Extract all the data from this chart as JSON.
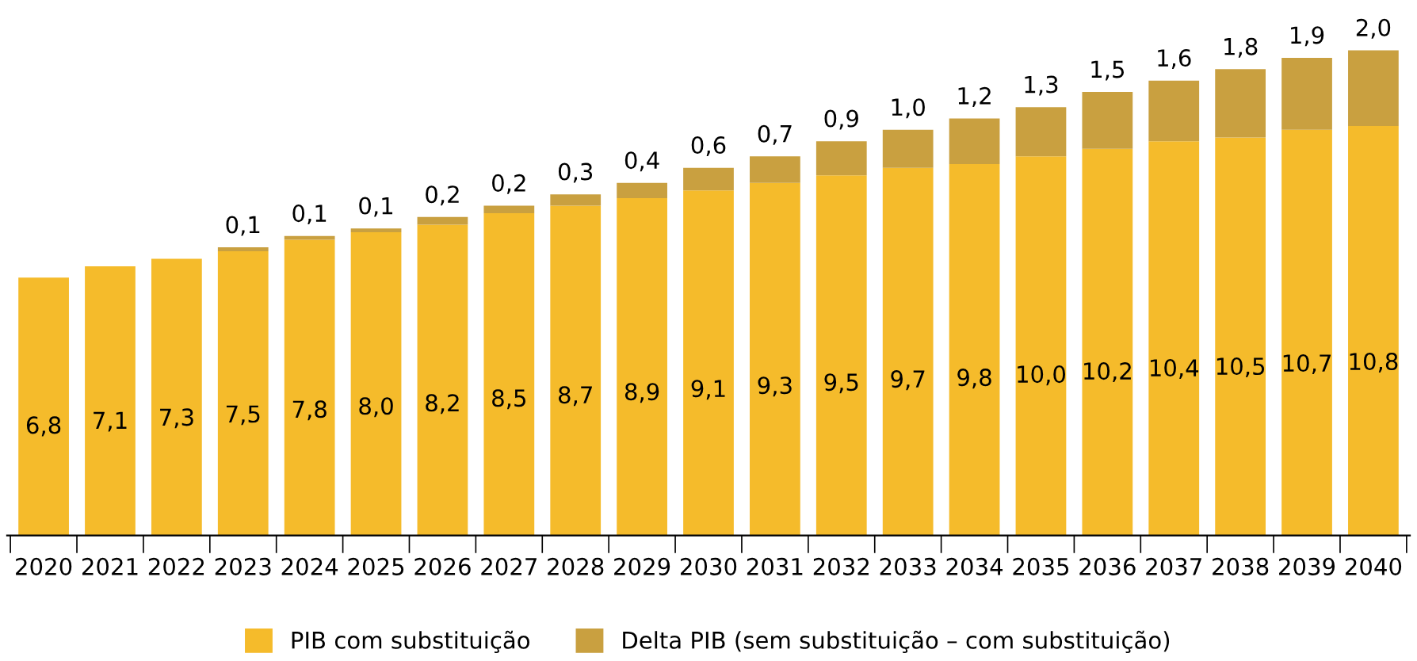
{
  "chart_data": {
    "type": "bar",
    "stacked": true,
    "legend": "bottom",
    "grid": false,
    "tick_labels": "x",
    "categories": [
      "2020",
      "2021",
      "2022",
      "2023",
      "2024",
      "2025",
      "2026",
      "2027",
      "2028",
      "2029",
      "2030",
      "2031",
      "2032",
      "2033",
      "2034",
      "2035",
      "2036",
      "2037",
      "2038",
      "2039",
      "2040"
    ],
    "series": [
      {
        "name": "PIB com substituição",
        "color": "#f5bb2b",
        "values": [
          6.8,
          7.1,
          7.3,
          7.5,
          7.8,
          8.0,
          8.2,
          8.5,
          8.7,
          8.9,
          9.1,
          9.3,
          9.5,
          9.7,
          9.8,
          10.0,
          10.2,
          10.4,
          10.5,
          10.7,
          10.8
        ],
        "value_labels": [
          "6,8",
          "7,1",
          "7,3",
          "7,5",
          "7,8",
          "8,0",
          "8,2",
          "8,5",
          "8,7",
          "8,9",
          "9,1",
          "9,3",
          "9,5",
          "9,7",
          "9,8",
          "10,0",
          "10,2",
          "10,4",
          "10,5",
          "10,7",
          "10,8"
        ]
      },
      {
        "name": "Delta PIB (sem substituição – com substituição)",
        "color": "#c9a040",
        "values": [
          null,
          null,
          null,
          0.1,
          0.1,
          0.1,
          0.2,
          0.2,
          0.3,
          0.4,
          0.6,
          0.7,
          0.9,
          1.0,
          1.2,
          1.3,
          1.5,
          1.6,
          1.8,
          1.9,
          2.0
        ],
        "value_labels": [
          null,
          null,
          null,
          "0,1",
          "0,1",
          "0,1",
          "0,2",
          "0,2",
          "0,3",
          "0,4",
          "0,6",
          "0,7",
          "0,9",
          "1,0",
          "1,2",
          "1,3",
          "1,5",
          "1,6",
          "1,8",
          "1,9",
          "2,0"
        ]
      }
    ]
  }
}
